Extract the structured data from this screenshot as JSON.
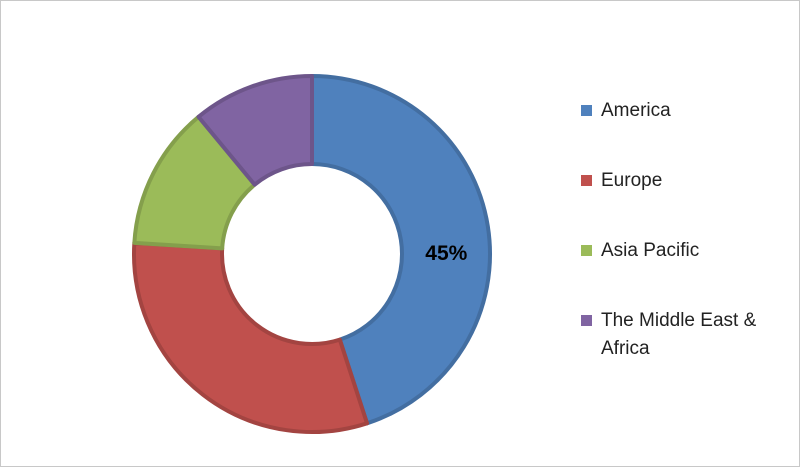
{
  "chart_data": {
    "type": "donut",
    "categories": [
      "America",
      "Europe",
      "Asia Pacific",
      "The Middle East & Africa"
    ],
    "values": [
      45,
      31,
      13,
      11
    ],
    "value_labels": [
      "45%",
      null,
      null,
      null
    ],
    "colors": [
      "#4f81bd",
      "#c0504d",
      "#9bbb59",
      "#8064a2"
    ],
    "legend": "right"
  }
}
